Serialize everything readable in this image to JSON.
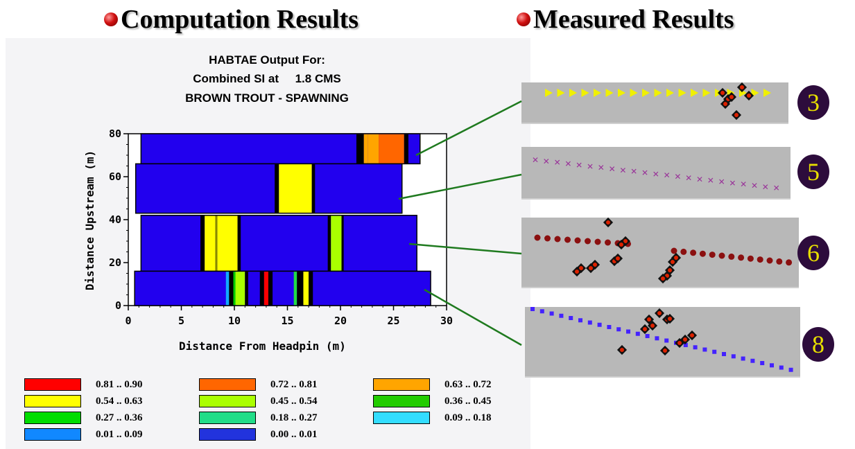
{
  "headings": {
    "computation": "Computation Results",
    "measured": "Measured Results"
  },
  "colors": {
    "background": "#ffffff",
    "panel": "#f4f4f6",
    "bullet": "#c00000",
    "connector": "#1f7a1f",
    "strip": "#b8b8b8",
    "badge_bg": "#2d0c3c",
    "badge_text": "#e8e000"
  },
  "chart_data": {
    "type": "heatmap",
    "title": [
      "HABTAE Output For:",
      "Combined SI at 1.8 CMS",
      "BROWN TROUT - SPAWNING"
    ],
    "xlabel": "Distance From Headpin (m)",
    "ylabel": "Distance Upstream (m)",
    "xlim": [
      0,
      30
    ],
    "ylim": [
      0,
      80
    ],
    "xticks": [
      0,
      5,
      10,
      15,
      20,
      25,
      30
    ],
    "yticks": [
      0,
      20,
      40,
      60,
      80
    ],
    "bands": [
      {
        "y": [
          66,
          80
        ],
        "x": [
          1.2,
          27.5
        ],
        "segments": [
          {
            "x": [
              21.5,
              22.2
            ],
            "c": "#000000"
          },
          {
            "x": [
              22.2,
              22.6
            ],
            "c": "#ffa500"
          },
          {
            "x": [
              22.6,
              23.6
            ],
            "c": "#ffa500"
          },
          {
            "x": [
              23.6,
              26.0
            ],
            "c": "#ff6600"
          },
          {
            "x": [
              26.0,
              26.4
            ],
            "c": "#000000"
          }
        ]
      },
      {
        "y": [
          43,
          66
        ],
        "x": [
          0.7,
          25.8
        ],
        "segments": [
          {
            "x": [
              13.8,
              14.2
            ],
            "c": "#000000"
          },
          {
            "x": [
              14.2,
              17.3
            ],
            "c": "#ffff00"
          },
          {
            "x": [
              17.3,
              17.6
            ],
            "c": "#000000"
          }
        ]
      },
      {
        "y": [
          16,
          42
        ],
        "x": [
          1.2,
          27.2
        ],
        "segments": [
          {
            "x": [
              6.8,
              7.2
            ],
            "c": "#000000"
          },
          {
            "x": [
              7.2,
              8.2
            ],
            "c": "#ffff00"
          },
          {
            "x": [
              8.2,
              8.4
            ],
            "c": "#888800"
          },
          {
            "x": [
              8.4,
              10.3
            ],
            "c": "#ffff00"
          },
          {
            "x": [
              10.3,
              10.6
            ],
            "c": "#000000"
          },
          {
            "x": [
              18.8,
              19.1
            ],
            "c": "#000000"
          },
          {
            "x": [
              19.1,
              20.1
            ],
            "c": "#aaff00"
          },
          {
            "x": [
              20.1,
              20.3
            ],
            "c": "#000000"
          }
        ]
      },
      {
        "y": [
          0,
          16
        ],
        "x": [
          0.6,
          28.5
        ],
        "segments": [
          {
            "x": [
              9.2,
              9.5
            ],
            "c": "#11aaff"
          },
          {
            "x": [
              9.5,
              9.9
            ],
            "c": "#000000"
          },
          {
            "x": [
              9.9,
              10.1
            ],
            "c": "#00cc00"
          },
          {
            "x": [
              10.1,
              11.0
            ],
            "c": "#aaff00"
          },
          {
            "x": [
              11.0,
              11.3
            ],
            "c": "#000000"
          },
          {
            "x": [
              12.4,
              12.8
            ],
            "c": "#000000"
          },
          {
            "x": [
              12.8,
              13.2
            ],
            "c": "#ff0000"
          },
          {
            "x": [
              13.2,
              13.6
            ],
            "c": "#000000"
          },
          {
            "x": [
              15.6,
              15.9
            ],
            "c": "#22dd44"
          },
          {
            "x": [
              15.9,
              16.5
            ],
            "c": "#000000"
          },
          {
            "x": [
              16.5,
              17.0
            ],
            "c": "#ffff00"
          },
          {
            "x": [
              17.0,
              17.4
            ],
            "c": "#000000"
          }
        ]
      }
    ],
    "band_color": "#2200ee",
    "legend": [
      {
        "label": "0.81 .. 0.90",
        "color": "#ff0000"
      },
      {
        "label": "0.72 .. 0.81",
        "color": "#ff6600"
      },
      {
        "label": "0.63 .. 0.72",
        "color": "#ffa500"
      },
      {
        "label": "0.54 .. 0.63",
        "color": "#ffff00"
      },
      {
        "label": "0.45 .. 0.54",
        "color": "#aaff00"
      },
      {
        "label": "0.36 .. 0.45",
        "color": "#22cc00"
      },
      {
        "label": "0.27 .. 0.36",
        "color": "#00dd00"
      },
      {
        "label": "0.18 .. 0.27",
        "color": "#22dd88"
      },
      {
        "label": "0.09 .. 0.18",
        "color": "#33ddff"
      },
      {
        "label": "0.01 .. 0.09",
        "color": "#1188ff"
      },
      {
        "label": "0.00 .. 0.01",
        "color": "#2233dd"
      }
    ]
  },
  "measured": {
    "strips": [
      {
        "badge": "3",
        "marker": "yellow-triangle"
      },
      {
        "badge": "5",
        "marker": "purple-cross"
      },
      {
        "badge": "6",
        "marker": "red-circle"
      },
      {
        "badge": "8",
        "marker": "blue-square"
      }
    ]
  }
}
